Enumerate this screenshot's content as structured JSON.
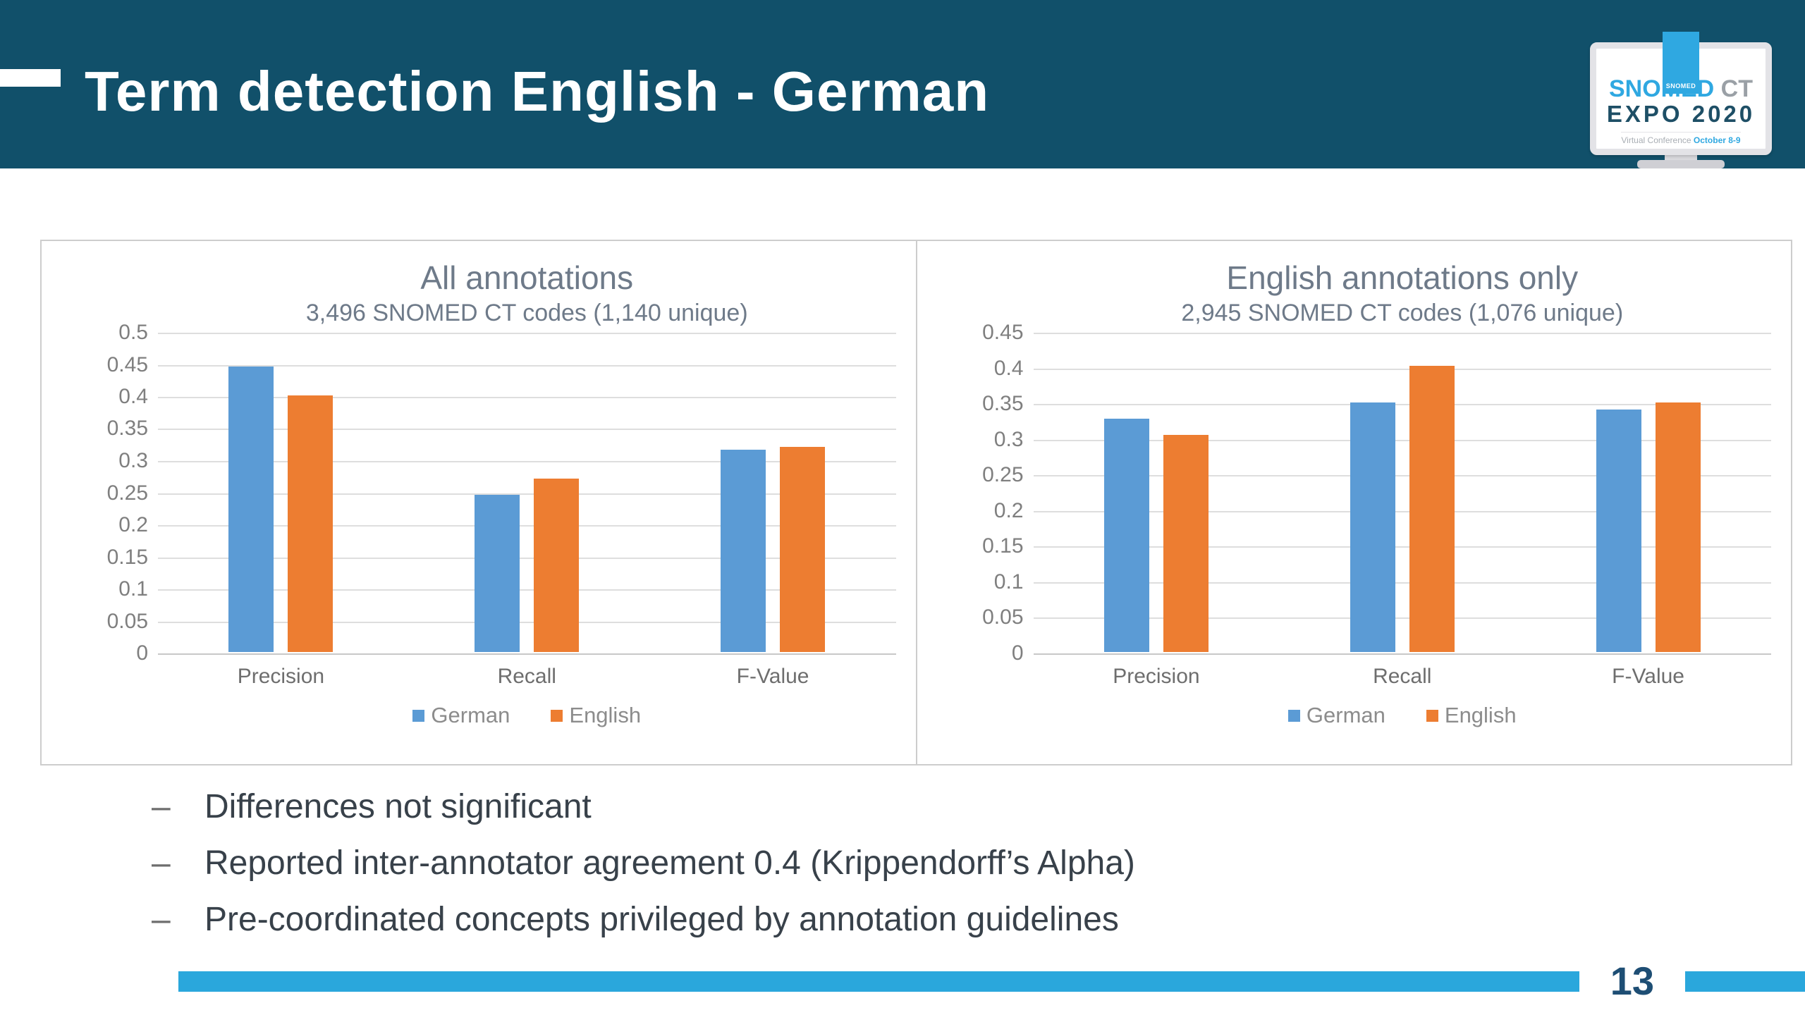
{
  "header": {
    "title": "Term detection English - German"
  },
  "logo": {
    "tab_text": "SNOMED",
    "snomed": "SNOMED",
    "ct": " CT",
    "expo": "EXPO 2020",
    "virtual_conference": "Virtual Conference ",
    "dates": "October 8-9"
  },
  "chart_data": [
    {
      "type": "bar",
      "title": "All annotations",
      "subtitle": "3,496 SNOMED CT codes (1,140 unique)",
      "categories": [
        "Precision",
        "Recall",
        "F-Value"
      ],
      "series": [
        {
          "name": "German",
          "color": "#5B9BD5",
          "values": [
            0.445,
            0.245,
            0.315
          ]
        },
        {
          "name": "English",
          "color": "#ED7D31",
          "values": [
            0.4,
            0.27,
            0.32
          ]
        }
      ],
      "ylim": [
        0,
        0.5
      ],
      "ytick_step": 0.05,
      "grid": true,
      "legend_position": "bottom"
    },
    {
      "type": "bar",
      "title": "English annotations only",
      "subtitle": "2,945 SNOMED CT codes (1,076 unique)",
      "categories": [
        "Precision",
        "Recall",
        "F-Value"
      ],
      "series": [
        {
          "name": "German",
          "color": "#5B9BD5",
          "values": [
            0.327,
            0.35,
            0.34
          ]
        },
        {
          "name": "English",
          "color": "#ED7D31",
          "values": [
            0.305,
            0.402,
            0.35
          ]
        }
      ],
      "ylim": [
        0,
        0.45
      ],
      "ytick_step": 0.05,
      "grid": true,
      "legend_position": "bottom"
    }
  ],
  "bullets": [
    "Differences not significant",
    "Reported inter-annotator agreement 0.4 (Krippendorff’s Alpha)",
    "Pre-coordinated concepts privileged by annotation guidelines"
  ],
  "bullet_marker": "–",
  "footer": {
    "page_number": "13"
  },
  "colors": {
    "header_bg": "#11506A",
    "series_german": "#5B9BD5",
    "series_english": "#ED7D31",
    "footer_rule": "#2AA7DC",
    "page_number": "#1E4E74",
    "logo_accent": "#2FA8E1"
  }
}
